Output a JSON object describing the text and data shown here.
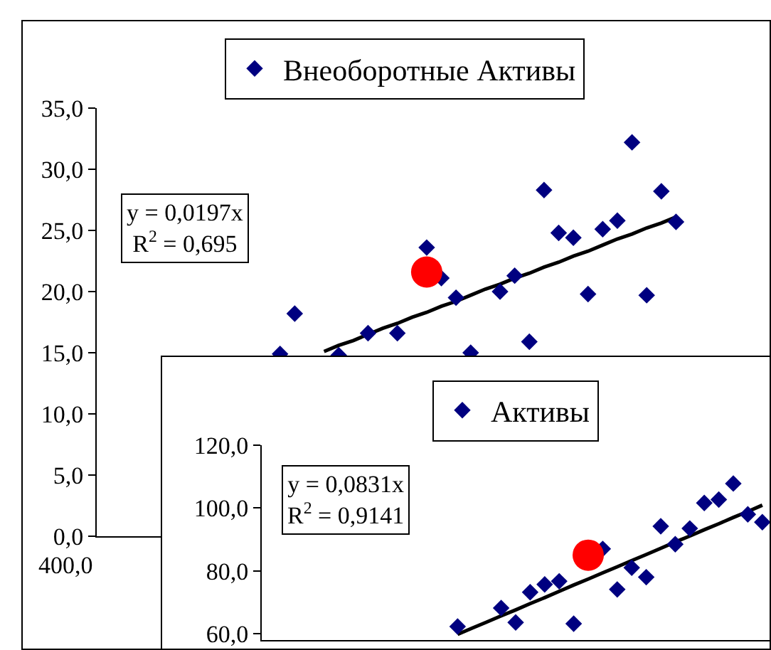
{
  "chart_data": [
    {
      "type": "scatter",
      "legend": "top",
      "grid": false,
      "tick_labels": "y",
      "categories": [
        null,
        null,
        null,
        null,
        null,
        null,
        null,
        null,
        null,
        null,
        null,
        null,
        null,
        null,
        null,
        null,
        null,
        null,
        null,
        null,
        null,
        null,
        null,
        null,
        null,
        null,
        null,
        null,
        null,
        null,
        null,
        null,
        null,
        null,
        null,
        null,
        null,
        null,
        null,
        null,
        null,
        null
      ],
      "ylim": [
        0,
        35
      ],
      "yticks": [
        {
          "value": 0,
          "label": "0,0"
        },
        {
          "value": 5,
          "label": "5,0"
        },
        {
          "value": 10,
          "label": "10,0"
        },
        {
          "value": 15,
          "label": "15,0"
        },
        {
          "value": 20,
          "label": "20,0"
        },
        {
          "value": 25,
          "label": "25,0"
        },
        {
          "value": 30,
          "label": "30,0"
        },
        {
          "value": 35,
          "label": "35,0"
        }
      ],
      "annotations": [
        "400,0",
        "y = 0,0197x",
        "R$^{2}$ = 0,695"
      ],
      "series": [
        {
          "name": "Внеоборотные Активы",
          "color": "#000080",
          "marker": "diamond",
          "values": [
            null,
            null,
            null,
            null,
            null,
            null,
            null,
            null,
            null,
            null,
            null,
            null,
            14.9,
            18.2,
            null,
            null,
            14.8,
            null,
            16.6,
            null,
            16.6,
            null,
            23.6,
            21.1,
            19.5,
            15.0,
            null,
            20.0,
            21.3,
            15.9,
            28.3,
            24.8,
            24.4,
            19.8,
            25.1,
            25.8,
            32.2,
            19.7,
            28.2,
            25.7,
            null,
            null
          ]
        },
        {
          "type": "scatter",
          "color": "#ff0000",
          "marker": "circle",
          "values": [
            null,
            null,
            null,
            null,
            null,
            null,
            null,
            null,
            null,
            null,
            null,
            null,
            null,
            null,
            null,
            null,
            null,
            null,
            null,
            null,
            null,
            null,
            21.6,
            null,
            null,
            null,
            null,
            null,
            null,
            null,
            null,
            null,
            null,
            null,
            null,
            null,
            null,
            null,
            null,
            null,
            null,
            null
          ]
        },
        {
          "type": "line",
          "color": "#000000",
          "values": [
            null,
            null,
            null,
            null,
            null,
            null,
            null,
            null,
            null,
            null,
            null,
            null,
            null,
            null,
            null,
            15.1,
            15.6,
            16.0,
            16.5,
            17.0,
            17.4,
            17.9,
            18.3,
            18.8,
            19.2,
            19.7,
            20.2,
            20.6,
            21.1,
            21.5,
            22.0,
            22.4,
            22.9,
            23.3,
            23.8,
            24.3,
            24.7,
            25.2,
            25.6,
            26.1,
            null,
            null
          ]
        }
      ]
    },
    {
      "type": "scatter",
      "legend": "top",
      "grid": false,
      "tick_labels": "y",
      "categories": [
        null,
        null,
        null,
        null,
        null,
        null,
        null,
        null,
        null,
        null,
        null,
        null,
        null,
        null,
        null,
        null,
        null,
        null,
        null,
        null,
        null,
        null,
        null,
        null,
        null,
        null,
        null,
        null,
        null,
        null,
        null,
        null,
        null,
        null,
        null
      ],
      "ylim": [
        58,
        120
      ],
      "yticks": [
        {
          "value": 60,
          "label": "60,0"
        },
        {
          "value": 80,
          "label": "80,0"
        },
        {
          "value": 100,
          "label": "100,0"
        },
        {
          "value": 120,
          "label": "120,0"
        }
      ],
      "annotations": [
        "y = 0,0831x",
        "R$^{2}$ = 0,9141"
      ],
      "series": [
        {
          "name": "Активы",
          "color": "#000080",
          "marker": "diamond",
          "values": [
            null,
            null,
            null,
            null,
            null,
            null,
            null,
            null,
            null,
            null,
            null,
            null,
            null,
            62.3,
            null,
            null,
            68.2,
            63.6,
            73.2,
            75.7,
            76.7,
            63.2,
            null,
            87.0,
            74.1,
            81.0,
            78.0,
            94.2,
            88.5,
            93.5,
            101.6,
            102.7,
            107.8,
            98.0,
            95.5
          ]
        },
        {
          "type": "scatter",
          "color": "#ff0000",
          "marker": "circle",
          "values": [
            null,
            null,
            null,
            null,
            null,
            null,
            null,
            null,
            null,
            null,
            null,
            null,
            null,
            null,
            null,
            null,
            null,
            null,
            null,
            null,
            null,
            null,
            85.0,
            null,
            null,
            null,
            null,
            null,
            null,
            null,
            null,
            null,
            null,
            null,
            null
          ]
        },
        {
          "type": "line",
          "color": "#000000",
          "values": [
            null,
            null,
            null,
            null,
            null,
            null,
            null,
            null,
            null,
            null,
            null,
            null,
            null,
            59.8,
            61.8,
            63.7,
            65.7,
            67.6,
            69.6,
            71.5,
            73.5,
            75.5,
            77.4,
            79.4,
            81.3,
            83.3,
            85.2,
            87.2,
            89.2,
            91.1,
            93.1,
            95.0,
            97.0,
            98.9,
            100.9
          ]
        }
      ]
    }
  ]
}
